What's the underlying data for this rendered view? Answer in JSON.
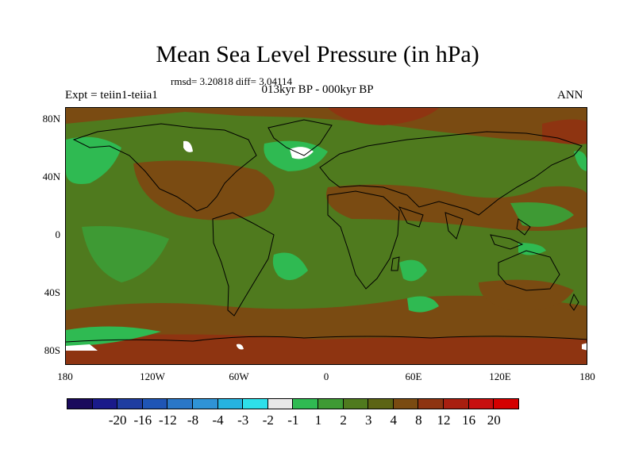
{
  "title": "Mean Sea Level Pressure (in hPa)",
  "stats": "rmsd= 3.20818 diff= 3.04114",
  "period": "013kyr BP - 000kyr BP",
  "experiment": "Expt = teiin1-teiia1",
  "season": "ANN",
  "y_ticks": [
    "80N",
    "40N",
    "0",
    "40S",
    "80S"
  ],
  "x_ticks": [
    "180",
    "120W",
    "60W",
    "0",
    "60E",
    "120E",
    "180"
  ],
  "colorbar": {
    "colors": [
      "#1a0a5c",
      "#1a1a8a",
      "#1f3da0",
      "#1f55b5",
      "#2a77c7",
      "#2f93d6",
      "#26b3e0",
      "#2ee0ea",
      "#e8e8e8",
      "#2fba52",
      "#3e9a34",
      "#4f7a1e",
      "#5c6414",
      "#7a4b12",
      "#8e3411",
      "#a81f10",
      "#c70f0f",
      "#d40000"
    ],
    "labels": [
      "-20",
      "-16",
      "-12",
      "-8",
      "-4",
      "-3",
      "-2",
      "-1",
      "1",
      "2",
      "3",
      "4",
      "8",
      "12",
      "16",
      "20"
    ]
  },
  "map_colors": {
    "base": "#4f7a1e",
    "warm": "#7a4b12",
    "hot": "#8e3411",
    "light": "#2fba52",
    "mid": "#3e9a34",
    "white": "#ffffff",
    "coast": "#000000"
  }
}
